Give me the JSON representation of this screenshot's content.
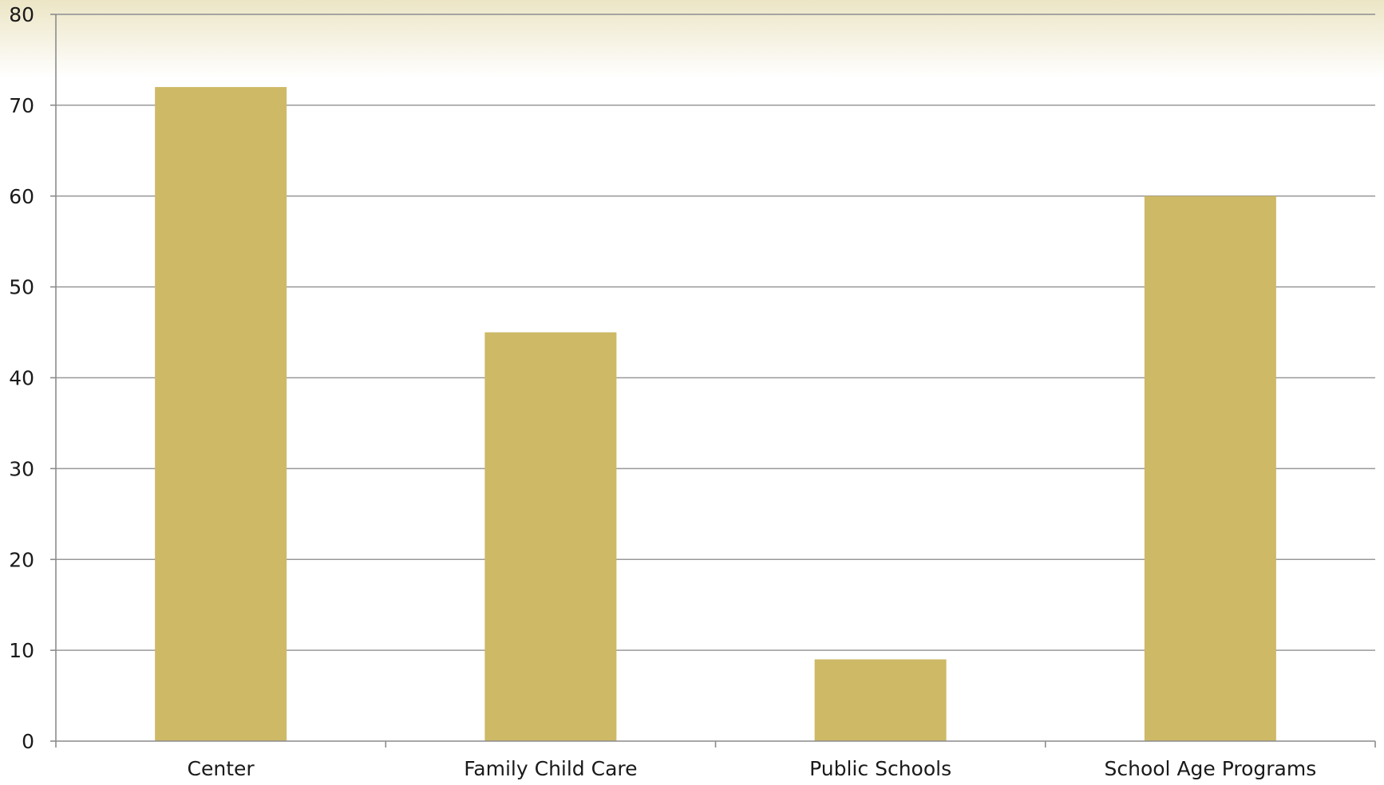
{
  "chart_data": {
    "type": "bar",
    "title": "",
    "xlabel": "",
    "ylabel": "",
    "categories": [
      "Center",
      "Family Child Care",
      "Public Schools",
      "School Age Programs"
    ],
    "values": [
      72,
      45,
      9,
      60
    ],
    "ylim": [
      0,
      80
    ],
    "yticks": [
      0,
      10,
      20,
      30,
      40,
      50,
      60,
      70,
      80
    ],
    "ytick_labels": [
      "0",
      "10",
      "20",
      "30",
      "40",
      "50",
      "60",
      "70",
      "80"
    ],
    "grid": true,
    "legend": "none"
  },
  "colors": {
    "bar": "#CEB966",
    "grid": "#999999",
    "axis": "#8c8c8c",
    "header_band_top": "#ECE5C5",
    "header_band_bottom": "#FFFFFF"
  }
}
